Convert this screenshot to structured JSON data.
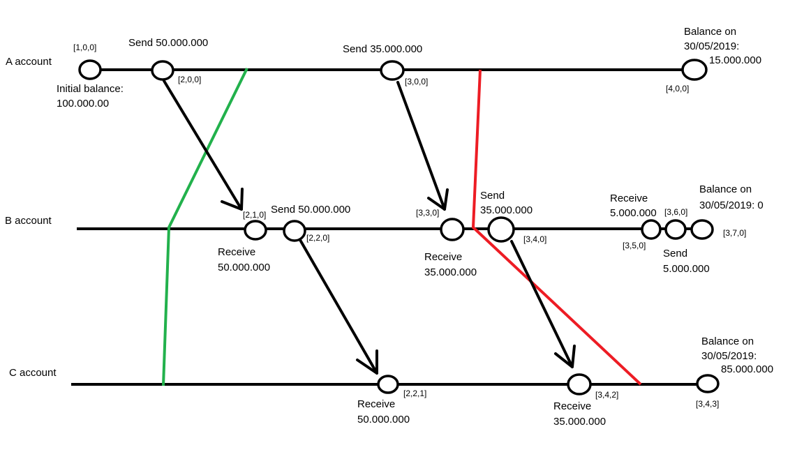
{
  "accounts": {
    "a": "A account",
    "b": "B account",
    "c": "C account"
  },
  "a_events": {
    "vc1": "[1,0,0]",
    "send1": "Send 50.000.000",
    "vc2": "[2,0,0]",
    "initial_1": "Initial balance:",
    "initial_2": "100.000.00",
    "send2": "Send 35.000.000",
    "vc3": "[3,0,0]",
    "balance_1": "Balance on",
    "balance_2": "30/05/2019:",
    "balance_3": "15.000.000",
    "vc4": "[4,0,0]"
  },
  "b_events": {
    "vc1": "[2,1,0]",
    "send1": "Send 50.000.000",
    "vc2": "[2,2,0]",
    "recv1_1": "Receive",
    "recv1_2": "50.000.000",
    "vc3": "[3,3,0]",
    "recv2_1": "Receive",
    "recv2_2": "35.000.000",
    "send2_1": "Send",
    "send2_2": "35.000.000",
    "vc4": "[3,4,0]",
    "recv3_1": "Receive",
    "recv3_2": "5.000.000",
    "vc5": "[3,5,0]",
    "vc6": "[3,6,0]",
    "send3_1": "Send",
    "send3_2": "5.000.000",
    "balance_1": "Balance on",
    "balance_2": "30/05/2019: 0",
    "vc7": "[3,7,0]"
  },
  "c_events": {
    "vc1": "[2,2,1]",
    "recv1_1": "Receive",
    "recv1_2": "50.000.000",
    "vc2": "[3,4,2]",
    "recv2_1": "Receive",
    "recv2_2": "35.000.000",
    "balance_1": "Balance on",
    "balance_2": "30/05/2019:",
    "balance_3": "85.000.000",
    "vc3": "[3,4,3]"
  },
  "colors": {
    "timeline": "#000000",
    "cut_consistent": "#22b14c",
    "cut_inconsistent": "#ed1c24"
  }
}
